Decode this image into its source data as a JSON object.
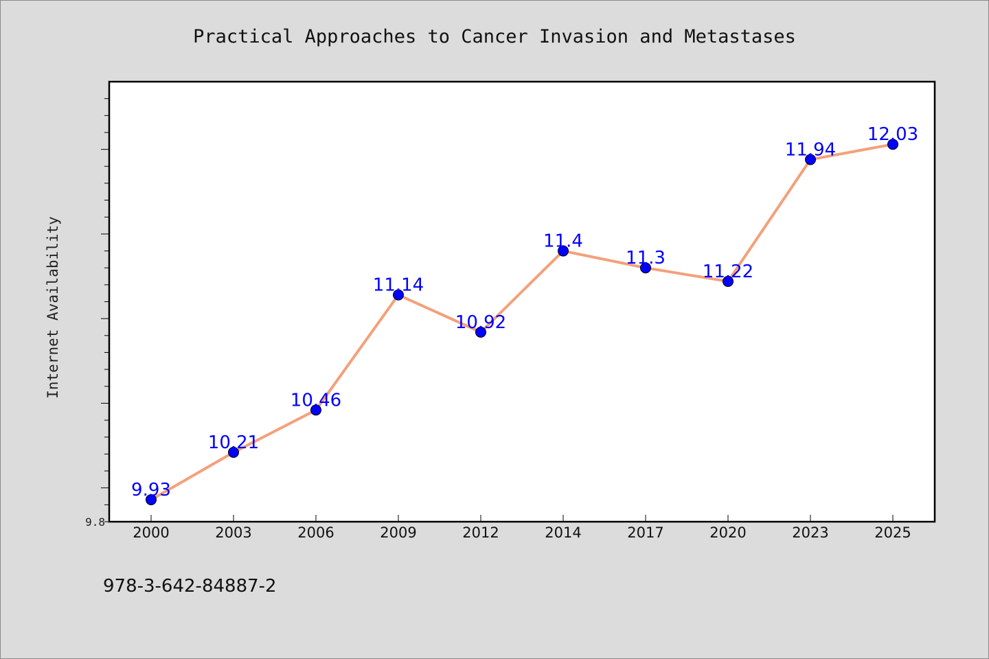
{
  "chart_data": {
    "type": "line",
    "title": "Practical Approaches to Cancer Invasion and Metastases",
    "xlabel": "",
    "ylabel": "Internet Availability",
    "categories": [
      "2000",
      "2003",
      "2006",
      "2009",
      "2012",
      "2014",
      "2017",
      "2020",
      "2023",
      "2025"
    ],
    "values": [
      9.93,
      10.21,
      10.46,
      11.14,
      10.92,
      11.4,
      11.3,
      11.22,
      11.94,
      12.03
    ],
    "data_labels": [
      "9.93",
      "10.21",
      "10.46",
      "11.14",
      "10.92",
      "11.4",
      "11.3",
      "11.22",
      "11.94",
      "12.03"
    ],
    "ylim": [
      9.8,
      12.4
    ],
    "ytick_labels": [
      "9.8"
    ],
    "grid": false,
    "line_color": "#f4a07a",
    "marker_color": "#0000ff",
    "label_color": "#0000ff",
    "background": "#dcdcdc",
    "plot_background": "#ffffff"
  },
  "footer_text": "978-3-642-84887-2"
}
